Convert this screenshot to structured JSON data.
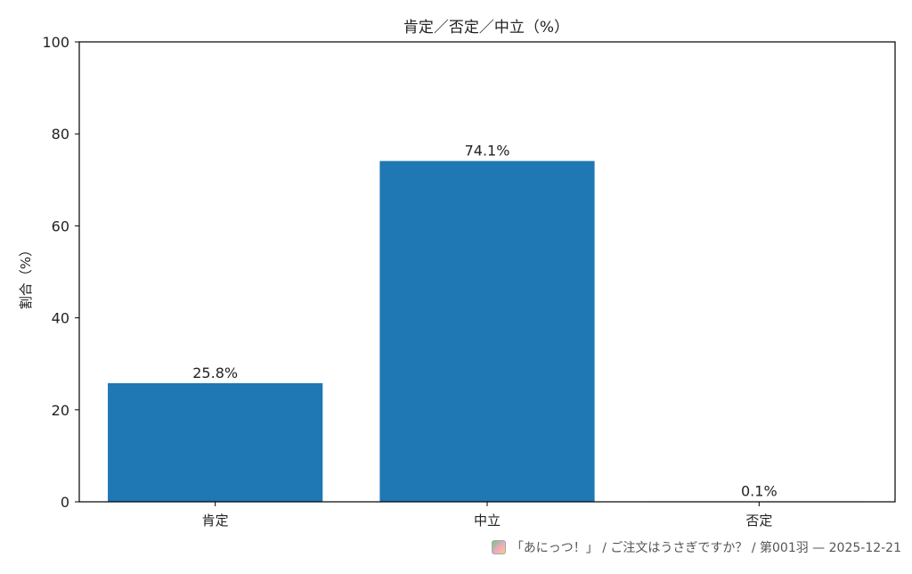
{
  "chart_data": {
    "type": "bar",
    "title": "肯定／否定／中立（%）",
    "ylabel": "割合（%）",
    "xlabel": "",
    "categories": [
      "肯定",
      "中立",
      "否定"
    ],
    "values": [
      25.8,
      74.1,
      0.1
    ],
    "value_labels": [
      "25.8%",
      "74.1%",
      "0.1%"
    ],
    "ylim": [
      0,
      100
    ],
    "yticks": [
      0,
      20,
      40,
      60,
      80,
      100
    ],
    "bar_color": "#1f77b4",
    "grid": false
  },
  "footer": {
    "text": "「あにっつ！」 / ご注文はうさぎですか？ / 第001羽 — 2025-12-21"
  },
  "colors": {
    "bar": "#1f77b4",
    "axis": "#000000",
    "footer_text": "#555555"
  }
}
